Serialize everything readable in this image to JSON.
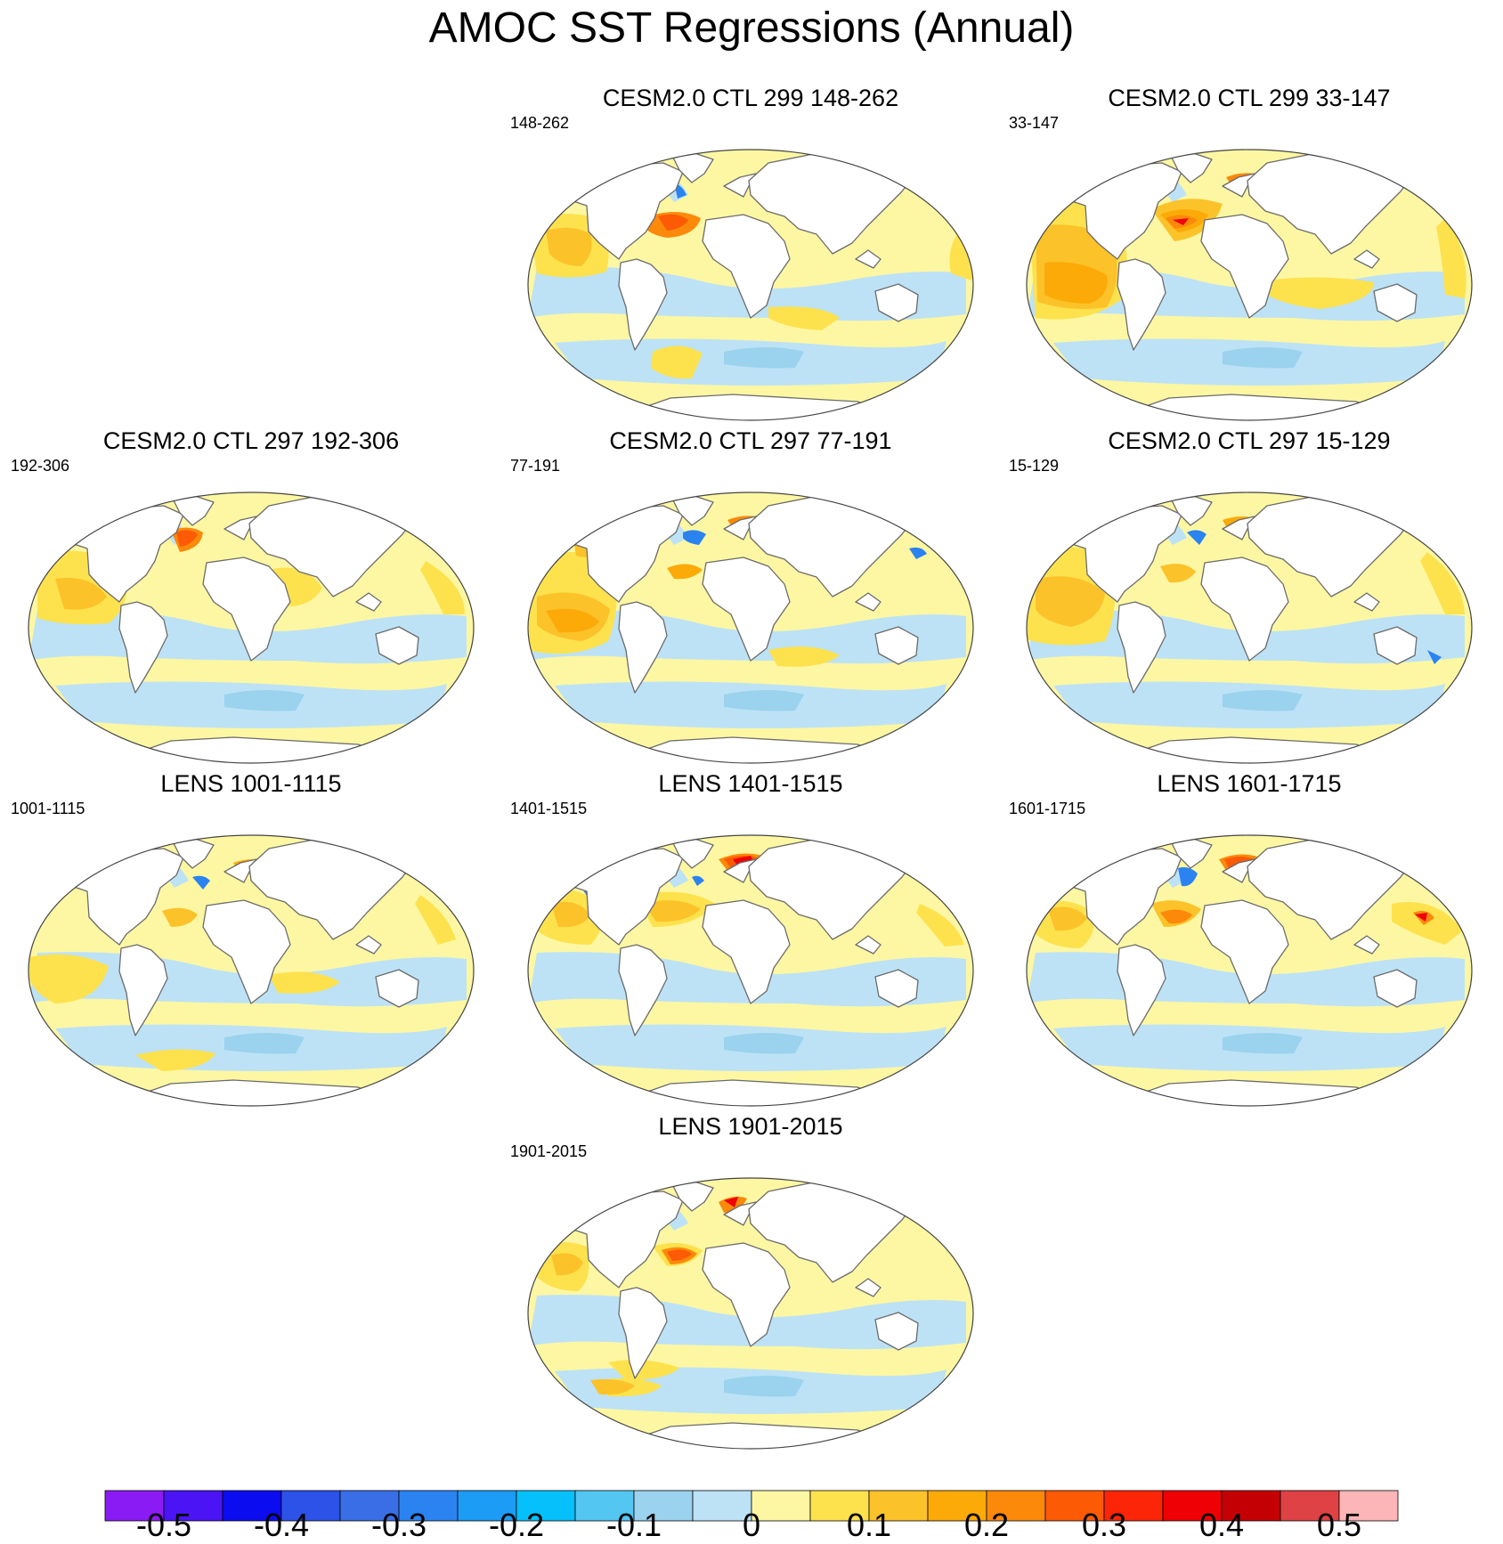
{
  "title": "AMOC SST Regressions (Annual)",
  "panels": [
    {
      "id": "p1",
      "title": "CESM2.0 CTL 299 148-262",
      "subtitle": "148-262",
      "pattern": "ctl299a"
    },
    {
      "id": "p2",
      "title": "CESM2.0 CTL 299 33-147",
      "subtitle": "33-147",
      "pattern": "ctl299b"
    },
    {
      "id": "p3",
      "title": "CESM2.0 CTL 297 192-306",
      "subtitle": "192-306",
      "pattern": "ctl297a"
    },
    {
      "id": "p4",
      "title": "CESM2.0 CTL 297 77-191",
      "subtitle": "77-191",
      "pattern": "ctl297b"
    },
    {
      "id": "p5",
      "title": "CESM2.0 CTL 297 15-129",
      "subtitle": "15-129",
      "pattern": "ctl297c"
    },
    {
      "id": "p6",
      "title": "LENS 1001-1115",
      "subtitle": "1001-1115",
      "pattern": "lens1"
    },
    {
      "id": "p7",
      "title": "LENS 1401-1515",
      "subtitle": "1401-1515",
      "pattern": "lens2"
    },
    {
      "id": "p8",
      "title": "LENS 1601-1715",
      "subtitle": "1601-1715",
      "pattern": "lens3"
    },
    {
      "id": "p9",
      "title": "LENS 1901-2015",
      "subtitle": "1901-2015",
      "pattern": "lens4"
    }
  ],
  "colorbar": {
    "colors": [
      "#8b1bf5",
      "#4a14f5",
      "#0c0cf0",
      "#2d52e8",
      "#3a6ee6",
      "#2b83f2",
      "#1c9cf5",
      "#05c0fb",
      "#54c6f2",
      "#9bd2ee",
      "#bde2f6",
      "#fdf7a3",
      "#fde24e",
      "#fcc22a",
      "#fcaa08",
      "#fc890a",
      "#fc5a05",
      "#fc2507",
      "#ee0005",
      "#c50005",
      "#de4245",
      "#fcb6b7"
    ],
    "labels": [
      "-0.5",
      "-0.4",
      "-0.3",
      "-0.2",
      "-0.1",
      "0",
      "0.1",
      "0.2",
      "0.3",
      "0.4",
      "0.5"
    ]
  },
  "palette": {
    "pos1": "#fdf7a3",
    "pos2": "#fde24e",
    "pos3": "#fcc22a",
    "pos4": "#fcaa08",
    "pos5": "#fc890a",
    "pos6": "#fc5a05",
    "pos7": "#ee0005",
    "neg1": "#bde2f6",
    "neg2": "#9bd2ee",
    "neg3": "#54c6f2",
    "neg4": "#2b83f2",
    "land": "#ffffff",
    "coast": "#6b6b6b"
  }
}
